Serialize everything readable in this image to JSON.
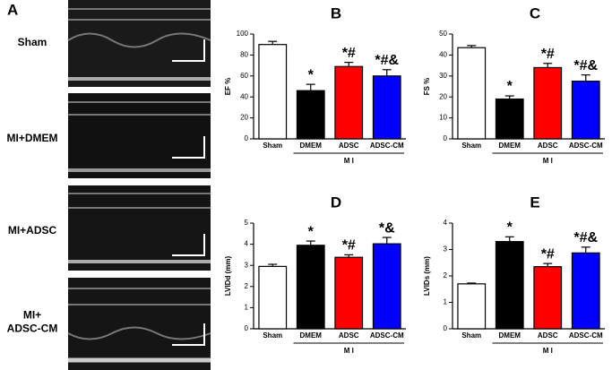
{
  "panel_a": {
    "letter": "A",
    "rows": [
      "Sham",
      "MI+DMEM",
      "MI+ADSC",
      "MI+\nADSC-CM"
    ]
  },
  "chart_data": [
    {
      "type": "bar",
      "panel": "B",
      "ylabel": "EF %",
      "categories": [
        "Sham",
        "DMEM",
        "ADSC",
        "ADSC-CM"
      ],
      "group_label": "M I",
      "values": [
        90,
        46,
        69,
        60
      ],
      "errors": [
        3,
        6,
        4,
        6
      ],
      "significance": [
        null,
        "*",
        "*#",
        "*#&"
      ],
      "colors": [
        "#ffffff",
        "#000000",
        "#ff0000",
        "#0000ff"
      ],
      "ylim": [
        0,
        100
      ],
      "yticks": [
        0,
        20,
        40,
        60,
        80,
        100
      ]
    },
    {
      "type": "bar",
      "panel": "C",
      "ylabel": "FS %",
      "categories": [
        "Sham",
        "DMEM",
        "ADSC",
        "ADSC-CM"
      ],
      "group_label": "M I",
      "values": [
        43.5,
        19,
        34,
        27.5
      ],
      "errors": [
        1,
        1.5,
        2,
        3
      ],
      "significance": [
        null,
        "*",
        "*#",
        "*#&"
      ],
      "colors": [
        "#ffffff",
        "#000000",
        "#ff0000",
        "#0000ff"
      ],
      "ylim": [
        0,
        50
      ],
      "yticks": [
        0,
        10,
        20,
        30,
        40,
        50
      ]
    },
    {
      "type": "bar",
      "panel": "D",
      "ylabel": "LVIDd (mm)",
      "categories": [
        "Sham",
        "DMEM",
        "ADSC",
        "ADSC-CM"
      ],
      "group_label": "M I",
      "values": [
        2.95,
        3.95,
        3.38,
        4.02
      ],
      "errors": [
        0.1,
        0.2,
        0.12,
        0.3
      ],
      "significance": [
        null,
        "*",
        "*#",
        "*&"
      ],
      "colors": [
        "#ffffff",
        "#000000",
        "#ff0000",
        "#0000ff"
      ],
      "ylim": [
        0,
        5
      ],
      "yticks": [
        0,
        1,
        2,
        3,
        4,
        5
      ]
    },
    {
      "type": "bar",
      "panel": "E",
      "ylabel": "LVIDs (mm)",
      "categories": [
        "Sham",
        "DMEM",
        "ADSC",
        "ADSC-CM"
      ],
      "group_label": "M I",
      "values": [
        1.7,
        3.3,
        2.35,
        2.87
      ],
      "errors": [
        0.03,
        0.18,
        0.12,
        0.22
      ],
      "significance": [
        null,
        "*",
        "*#",
        "*#&"
      ],
      "colors": [
        "#ffffff",
        "#000000",
        "#ff0000",
        "#0000ff"
      ],
      "ylim": [
        0,
        4
      ],
      "yticks": [
        0,
        1,
        2,
        3,
        4
      ]
    }
  ]
}
